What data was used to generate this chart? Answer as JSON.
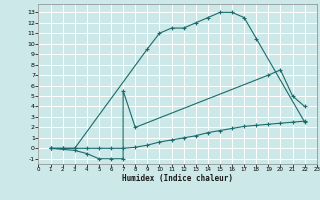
{
  "bg_color": "#cce8e8",
  "grid_color": "#ffffff",
  "line_color": "#1a6b6b",
  "curve1_x": [
    1,
    2,
    3,
    9,
    10,
    11,
    12,
    13,
    14,
    15,
    16,
    17,
    18,
    22
  ],
  "curve1_y": [
    0,
    0,
    0,
    9.5,
    11,
    11.5,
    11.5,
    12,
    12.5,
    13,
    13,
    12.5,
    10.5,
    2.5
  ],
  "curve2_x": [
    1,
    3,
    4,
    5,
    6,
    7,
    7,
    8,
    19,
    20,
    21,
    22
  ],
  "curve2_y": [
    0,
    -0.2,
    -0.5,
    -1,
    -1,
    -1,
    5.5,
    2,
    7,
    7.5,
    5,
    4
  ],
  "curve3_x": [
    1,
    2,
    3,
    4,
    5,
    6,
    7,
    8,
    9,
    10,
    11,
    12,
    13,
    14,
    15,
    16,
    17,
    18,
    19,
    20,
    21,
    22
  ],
  "curve3_y": [
    0,
    0,
    0,
    0,
    0,
    0,
    0,
    0.1,
    0.3,
    0.6,
    0.8,
    1.0,
    1.2,
    1.5,
    1.7,
    1.9,
    2.1,
    2.2,
    2.3,
    2.4,
    2.5,
    2.6
  ],
  "xlim": [
    0,
    23
  ],
  "ylim": [
    -1.5,
    13.8
  ],
  "xticks": [
    0,
    1,
    2,
    3,
    4,
    5,
    6,
    7,
    8,
    9,
    10,
    11,
    12,
    13,
    14,
    15,
    16,
    17,
    18,
    19,
    20,
    21,
    22,
    23
  ],
  "yticks": [
    -1,
    0,
    1,
    2,
    3,
    4,
    5,
    6,
    7,
    8,
    9,
    10,
    11,
    12,
    13
  ],
  "xlabel": "Humidex (Indice chaleur)"
}
